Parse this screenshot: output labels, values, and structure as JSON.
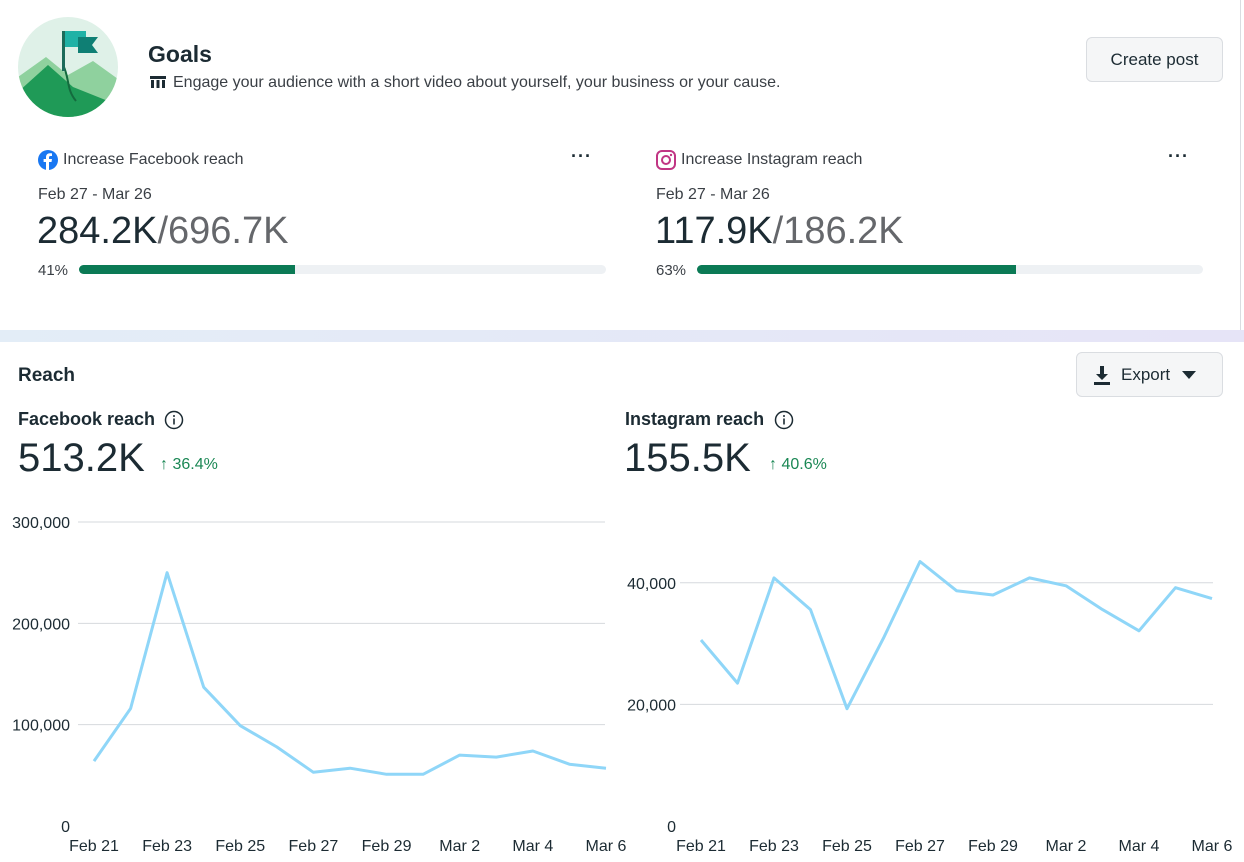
{
  "header": {
    "title": "Goals",
    "subtitle": "Engage your audience with a short video about yourself, your business or your cause.",
    "button": "Create post"
  },
  "goals": [
    {
      "title": "Increase Facebook reach",
      "date_range": "Feb 27 - Mar 26",
      "current": "284.2K",
      "target": "/696.7K",
      "progress": 41,
      "progress_label": "41%"
    },
    {
      "title": "Increase Instagram reach",
      "date_range": "Feb 27 - Mar 26",
      "current": "117.9K",
      "target": "/186.2K",
      "progress": 63,
      "progress_label": "63%"
    }
  ],
  "reach": {
    "title": "Reach",
    "export_button": "Export"
  },
  "chart_data": [
    {
      "type": "line",
      "title": "Facebook reach",
      "total": "513.2K",
      "change": "36.4%",
      "categories": [
        "Feb 21",
        null,
        "Feb 23",
        null,
        "Feb 25",
        null,
        "Feb 27",
        null,
        "Feb 29",
        null,
        "Mar 2",
        null,
        "Mar 4",
        null,
        "Mar 6"
      ],
      "values": [
        64000,
        116000,
        250000,
        137000,
        99000,
        78000,
        53000,
        57000,
        51000,
        51000,
        70000,
        68000,
        74000,
        61000,
        57000
      ],
      "color": "#8fd6f8",
      "ylim": [
        0,
        300000
      ],
      "yticks": [
        0,
        {
          "value": 100000,
          "label": "100,000"
        },
        {
          "value": 200000,
          "label": "200,000"
        },
        {
          "value": 300000,
          "label": "300,000"
        }
      ],
      "grid": true
    },
    {
      "type": "line",
      "title": "Instagram reach",
      "total": "155.5K",
      "change": "40.6%",
      "categories": [
        "Feb 21",
        null,
        "Feb 23",
        null,
        "Feb 25",
        null,
        "Feb 27",
        null,
        "Feb 29",
        null,
        "Mar 2",
        null,
        "Mar 4",
        null,
        "Mar 6"
      ],
      "values": [
        30600,
        23500,
        40800,
        35600,
        19300,
        30900,
        43500,
        38700,
        38000,
        40800,
        39500,
        35600,
        32100,
        39200,
        37400
      ],
      "color": "#8fd6f8",
      "ylim": [
        0,
        50000
      ],
      "yticks": [
        0,
        {
          "value": 20000,
          "label": "20,000"
        },
        {
          "value": 40000,
          "label": "40,000"
        }
      ],
      "grid": true
    }
  ]
}
